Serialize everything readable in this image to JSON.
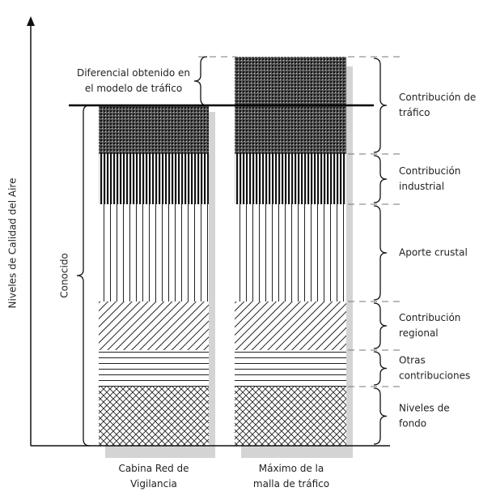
{
  "y_axis_label": "Niveles de Calidad del Aire",
  "columns": [
    {
      "label": [
        "Cabina Red de",
        "Vigilancia"
      ]
    },
    {
      "label": [
        "Máximo de la",
        "malla de tráfico"
      ]
    }
  ],
  "left_annotations": {
    "differential": [
      "Diferencial obtenido en",
      "el modelo de tráfico"
    ],
    "known": "Conocido"
  },
  "components": [
    {
      "label": [
        "Contribución de",
        "tráfico"
      ]
    },
    {
      "label": [
        "Contribución",
        "industrial"
      ]
    },
    {
      "label": [
        "Aporte crustal"
      ]
    },
    {
      "label": [
        "Contribución",
        "regional"
      ]
    },
    {
      "label": [
        "Otras",
        "contribuciones"
      ]
    },
    {
      "label": [
        "Niveles de",
        "fondo"
      ]
    }
  ]
}
